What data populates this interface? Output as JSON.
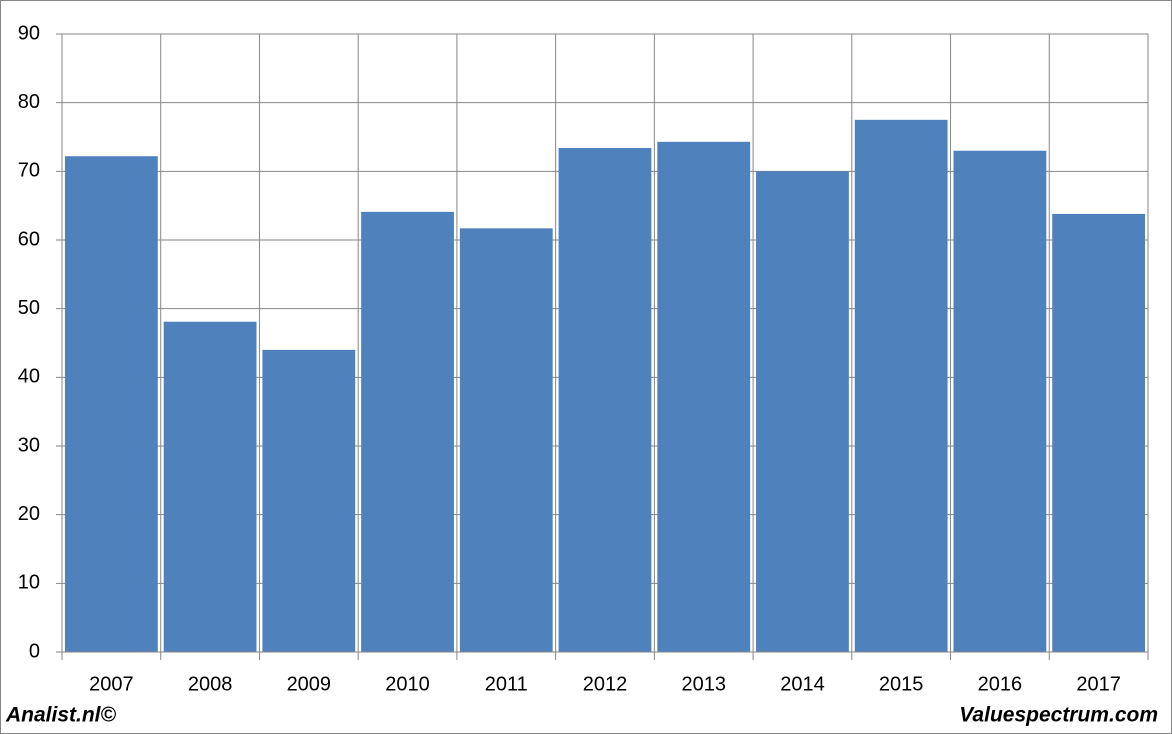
{
  "chart_data": {
    "type": "bar",
    "categories": [
      "2007",
      "2008",
      "2009",
      "2010",
      "2011",
      "2012",
      "2013",
      "2014",
      "2015",
      "2016",
      "2017"
    ],
    "values": [
      72.2,
      48.1,
      44.0,
      64.1,
      61.7,
      73.4,
      74.3,
      70.0,
      77.5,
      73.0,
      63.8
    ],
    "color": "#4f81bd",
    "ylim": [
      0,
      90
    ],
    "yticks": [
      0,
      10,
      20,
      30,
      40,
      50,
      60,
      70,
      80,
      90
    ],
    "grid": true,
    "annotations": [
      "Analist.nl©",
      "Valuespectrum.com"
    ]
  }
}
